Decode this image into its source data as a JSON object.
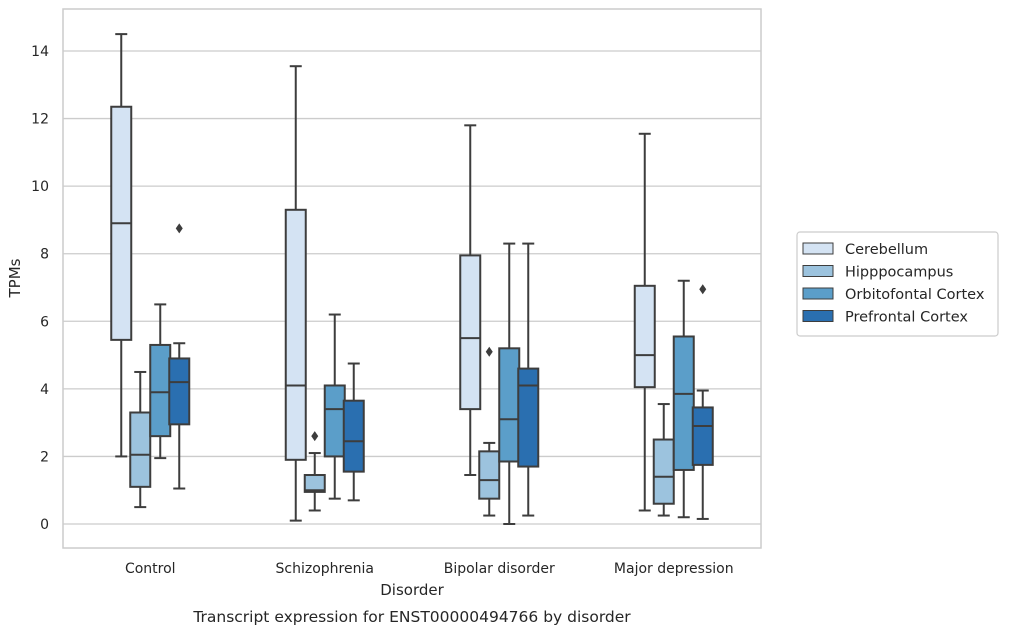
{
  "chart_data": {
    "type": "boxplot",
    "caption": "Transcript expression for ENST00000494766 by disorder",
    "xlabel": "Disorder",
    "ylabel": "TPMs",
    "ylim": [
      -0.7,
      15.2
    ],
    "yticks": [
      0,
      2,
      4,
      6,
      8,
      10,
      12,
      14
    ],
    "grid": "horizontal",
    "legend_position": "right-outside",
    "categories": [
      "Control",
      "Schizophrenia",
      "Bipolar disorder",
      "Major depression"
    ],
    "series": [
      {
        "name": "Cerebellum",
        "color": "#d4e3f3",
        "boxes": [
          {
            "min": 2.0,
            "q1": 5.45,
            "median": 8.9,
            "q3": 12.35,
            "max": 14.5,
            "outliers": []
          },
          {
            "min": 0.1,
            "q1": 1.9,
            "median": 4.1,
            "q3": 9.3,
            "max": 13.55,
            "outliers": []
          },
          {
            "min": 1.45,
            "q1": 3.4,
            "median": 5.5,
            "q3": 7.95,
            "max": 11.8,
            "outliers": []
          },
          {
            "min": 0.4,
            "q1": 4.05,
            "median": 5.0,
            "q3": 7.05,
            "max": 11.55,
            "outliers": []
          }
        ]
      },
      {
        "name": "Hipppocampus",
        "color": "#9cc3de",
        "boxes": [
          {
            "min": 0.5,
            "q1": 1.1,
            "median": 2.05,
            "q3": 3.3,
            "max": 4.5,
            "outliers": []
          },
          {
            "min": 0.4,
            "q1": 0.95,
            "median": 1.0,
            "q3": 1.45,
            "max": 2.1,
            "outliers": [
              2.6
            ]
          },
          {
            "min": 0.25,
            "q1": 0.75,
            "median": 1.3,
            "q3": 2.15,
            "max": 2.4,
            "outliers": [
              5.1
            ]
          },
          {
            "min": 0.25,
            "q1": 0.6,
            "median": 1.4,
            "q3": 2.5,
            "max": 3.55,
            "outliers": []
          }
        ]
      },
      {
        "name": "Orbitofontal Cortex",
        "color": "#5b9ec9",
        "boxes": [
          {
            "min": 1.95,
            "q1": 2.6,
            "median": 3.9,
            "q3": 5.3,
            "max": 6.5,
            "outliers": []
          },
          {
            "min": 0.75,
            "q1": 2.0,
            "median": 3.4,
            "q3": 4.1,
            "max": 6.2,
            "outliers": []
          },
          {
            "min": 0.0,
            "q1": 1.85,
            "median": 3.1,
            "q3": 5.2,
            "max": 8.3,
            "outliers": []
          },
          {
            "min": 0.2,
            "q1": 1.6,
            "median": 3.85,
            "q3": 5.55,
            "max": 7.2,
            "outliers": []
          }
        ]
      },
      {
        "name": "Prefrontal Cortex",
        "color": "#2a6fb0",
        "boxes": [
          {
            "min": 1.05,
            "q1": 2.95,
            "median": 4.2,
            "q3": 4.9,
            "max": 5.35,
            "outliers": [
              8.75
            ]
          },
          {
            "min": 0.7,
            "q1": 1.55,
            "median": 2.45,
            "q3": 3.65,
            "max": 4.75,
            "outliers": []
          },
          {
            "min": 0.25,
            "q1": 1.7,
            "median": 4.1,
            "q3": 4.6,
            "max": 8.3,
            "outliers": []
          },
          {
            "min": 0.15,
            "q1": 1.75,
            "median": 2.9,
            "q3": 3.45,
            "max": 3.95,
            "outliers": [
              6.95
            ]
          }
        ]
      }
    ]
  }
}
